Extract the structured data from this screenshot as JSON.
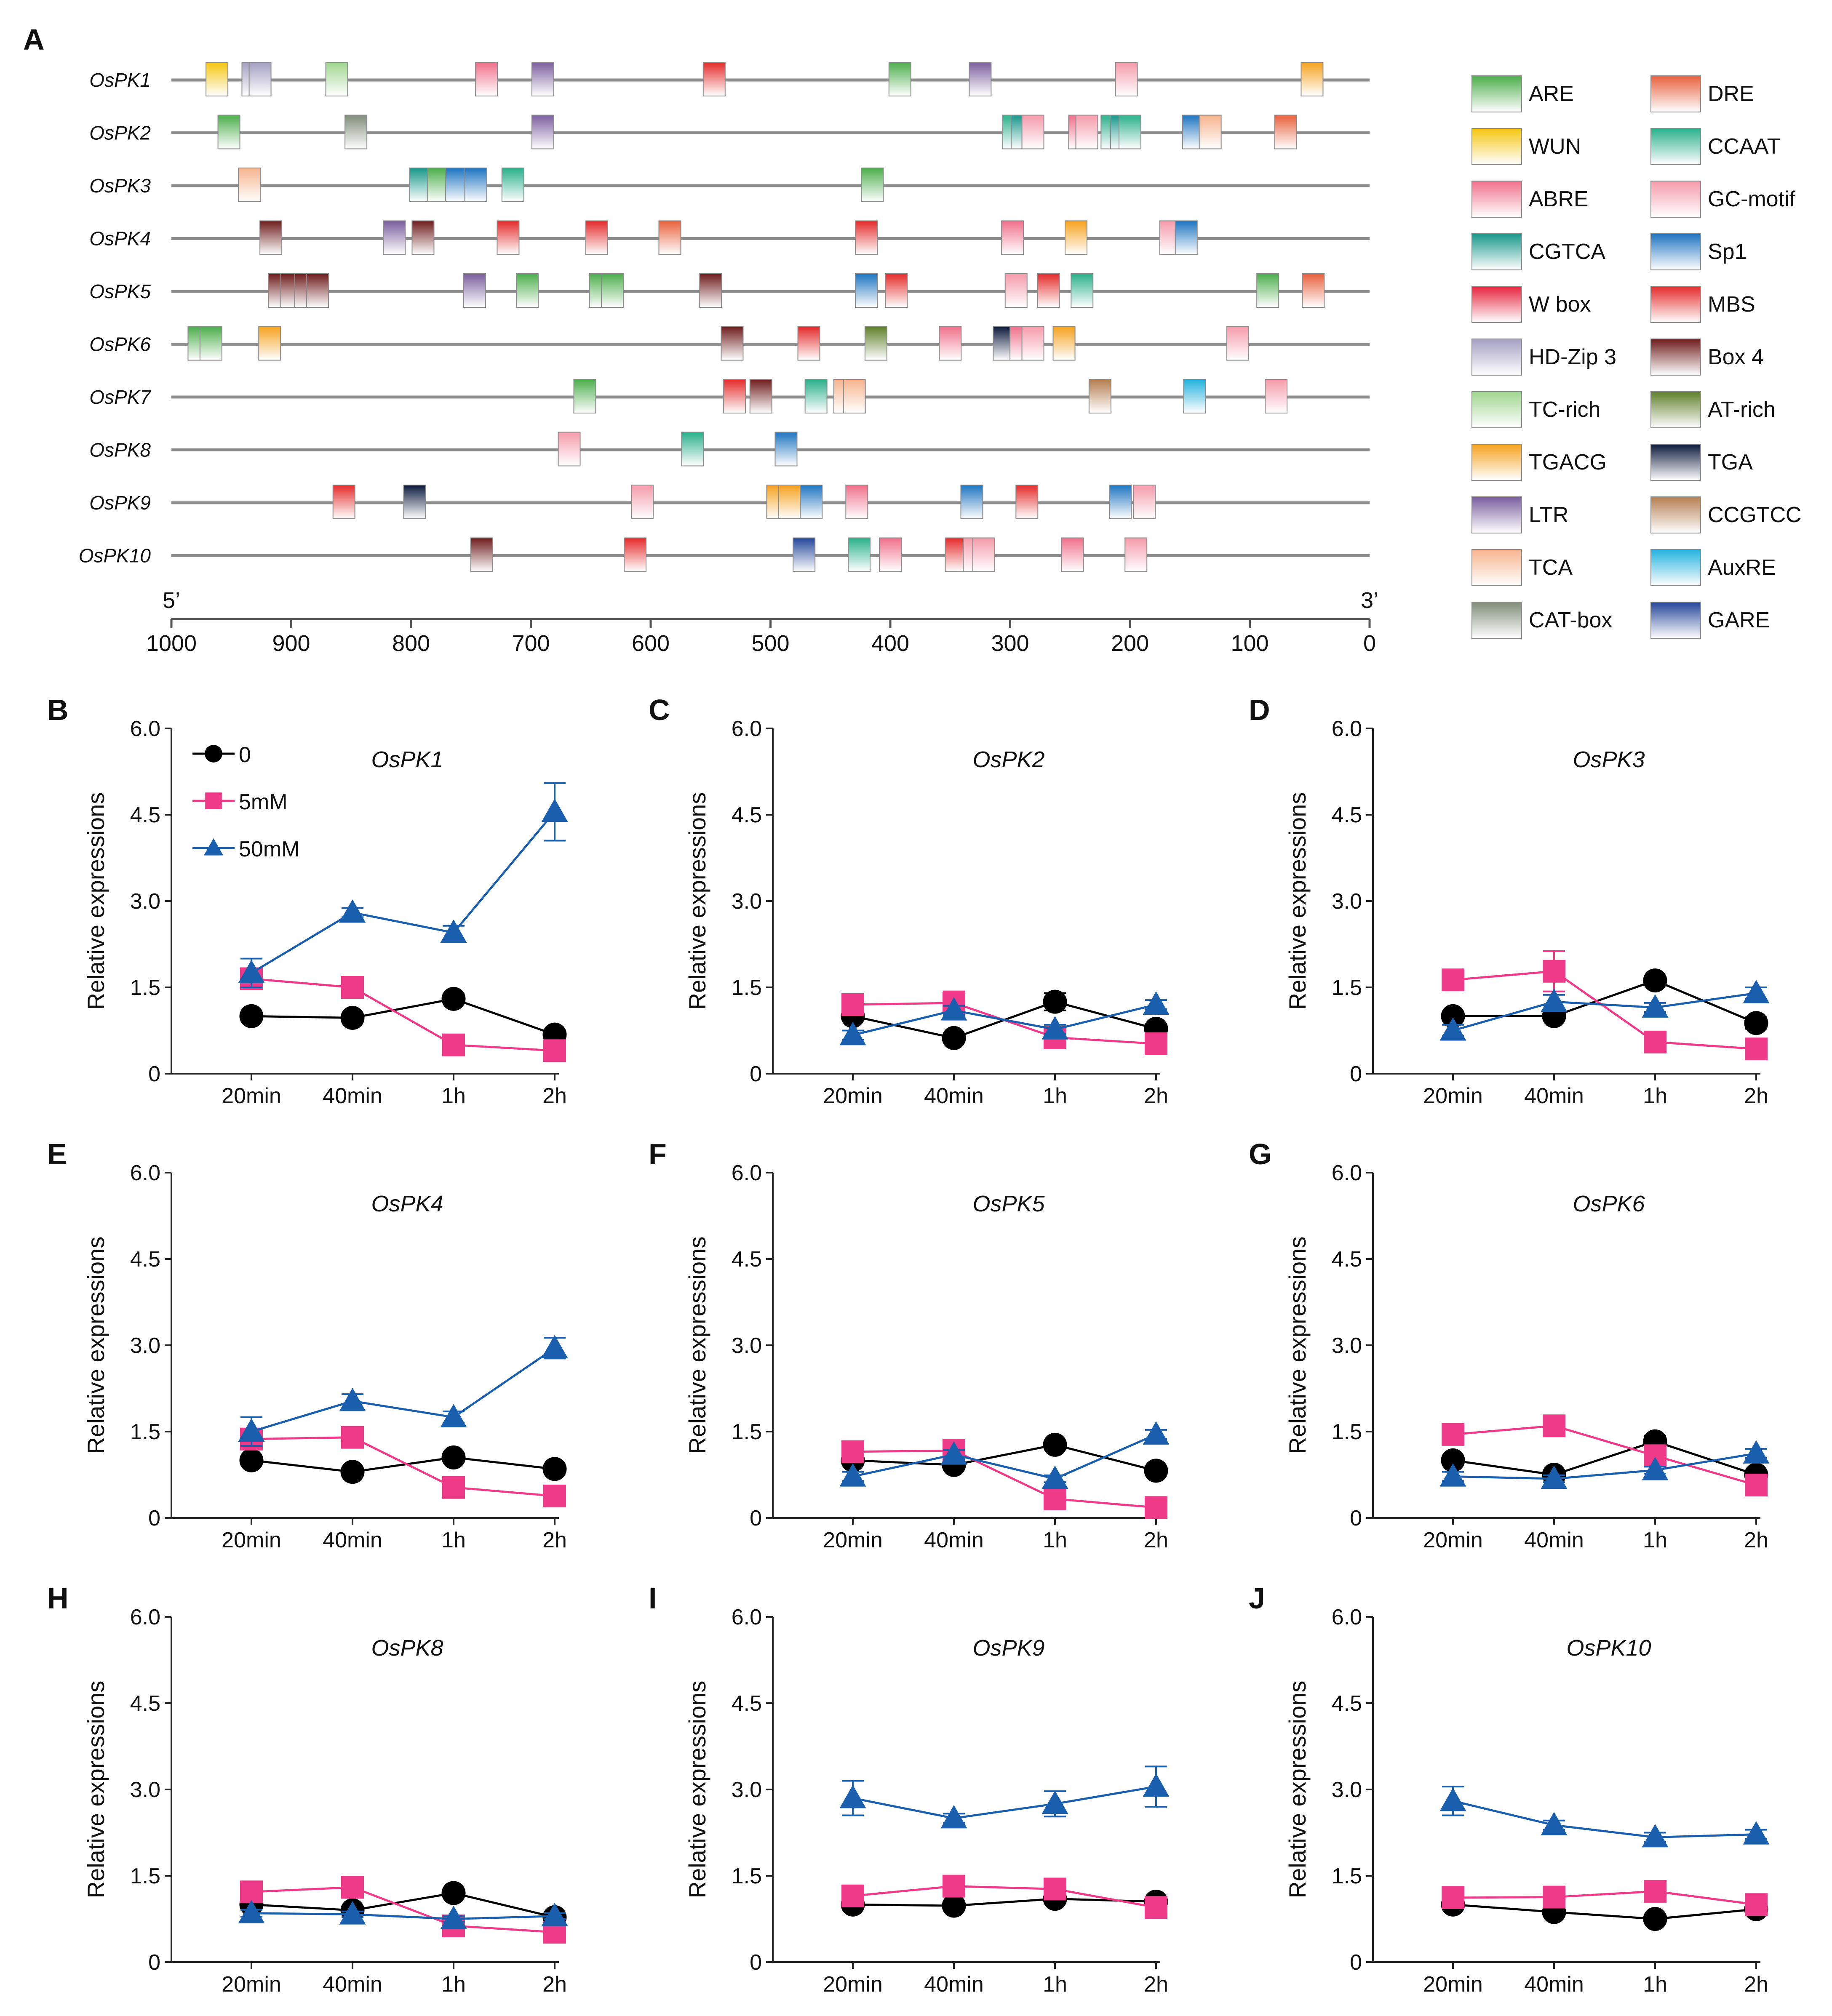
{
  "colors": {
    "ARE": "#4cae4c",
    "WUN": "#f5c60f",
    "ABRE": "#f0708a",
    "CGTCA": "#17978a",
    "W box": "#e8233e",
    "HD-Zip 3": "#a4a0c2",
    "TC-rich": "#9fd68f",
    "TGACG": "#f6a21d",
    "LTR": "#7a5e9e",
    "TCA": "#f7b48e",
    "CAT-box": "#7f8c78",
    "DRE": "#e8603c",
    "CCAAT": "#29b08a",
    "GC-motif": "#f59aaa",
    "Sp1": "#1d74c0",
    "MBS": "#e52a2a",
    "Box 4": "#6e1c1c",
    "AT-rich": "#5f7f2a",
    "TGA": "#0c1a3c",
    "CCGTCC": "#b57e50",
    "AuxRE": "#22b2de",
    "GARE": "#23469a",
    "series_0": "#000000",
    "series_5mM": "#ee3a88",
    "series_50mM": "#1a5fae"
  },
  "panel_a": {
    "letter": "A",
    "start_label": "5’",
    "end_label": "3’",
    "axis_ticks": [
      "1000",
      "900",
      "800",
      "700",
      "600",
      "500",
      "400",
      "300",
      "200",
      "100",
      "0"
    ],
    "legend": {
      "left": [
        "ARE",
        "WUN",
        "ABRE",
        "CGTCA",
        "W box",
        "HD-Zip 3",
        "TC-rich",
        "TGACG",
        "LTR",
        "TCA",
        "CAT-box"
      ],
      "right": [
        "DRE",
        "CCAAT",
        "GC-motif",
        "Sp1",
        "MBS",
        "Box 4",
        "AT-rich",
        "TGA",
        "CCGTCC",
        "AuxRE",
        "GARE"
      ]
    },
    "genes": [
      {
        "name": "OsPK1",
        "elements": [
          [
            "WUN",
            962
          ],
          [
            "HD-Zip 3",
            932
          ],
          [
            "HD-Zip 3",
            926
          ],
          [
            "TC-rich",
            862
          ],
          [
            "ABRE",
            737
          ],
          [
            "LTR",
            690
          ],
          [
            "MBS",
            547
          ],
          [
            "ARE",
            392
          ],
          [
            "LTR",
            325
          ],
          [
            "GC-motif",
            203
          ],
          [
            "TGACG",
            48
          ]
        ]
      },
      {
        "name": "OsPK2",
        "elements": [
          [
            "ARE",
            952
          ],
          [
            "CAT-box",
            846
          ],
          [
            "LTR",
            690
          ],
          [
            "CCAAT",
            297
          ],
          [
            "CGTCA",
            290
          ],
          [
            "GC-motif",
            281
          ],
          [
            "ABRE",
            242
          ],
          [
            "GC-motif",
            236
          ],
          [
            "CCAAT",
            215
          ],
          [
            "CGTCA",
            207
          ],
          [
            "CCAAT",
            200
          ],
          [
            "Sp1",
            147
          ],
          [
            "TCA",
            133
          ],
          [
            "DRE",
            70
          ]
        ]
      },
      {
        "name": "OsPK3",
        "elements": [
          [
            "TCA",
            935
          ],
          [
            "CGTCA",
            792
          ],
          [
            "ARE",
            777
          ],
          [
            "Sp1",
            762
          ],
          [
            "Sp1",
            746
          ],
          [
            "CCAAT",
            715
          ],
          [
            "ARE",
            415
          ]
        ]
      },
      {
        "name": "OsPK4",
        "elements": [
          [
            "Box 4",
            917
          ],
          [
            "LTR",
            814
          ],
          [
            "Box 4",
            790
          ],
          [
            "MBS",
            719
          ],
          [
            "MBS",
            645
          ],
          [
            "DRE",
            584
          ],
          [
            "MBS",
            420
          ],
          [
            "ABRE",
            298
          ],
          [
            "TGACG",
            245
          ],
          [
            "GC-motif",
            166
          ],
          [
            "Sp1",
            153
          ]
        ]
      },
      {
        "name": "OsPK5",
        "elements": [
          [
            "Box 4",
            910
          ],
          [
            "Box 4",
            900
          ],
          [
            "Box 4",
            888
          ],
          [
            "Box 4",
            878
          ],
          [
            "LTR",
            747
          ],
          [
            "ARE",
            703
          ],
          [
            "ARE",
            642
          ],
          [
            "ARE",
            632
          ],
          [
            "Box 4",
            550
          ],
          [
            "Sp1",
            420
          ],
          [
            "MBS",
            395
          ],
          [
            "GC-motif",
            295
          ],
          [
            "MBS",
            268
          ],
          [
            "CCAAT",
            240
          ],
          [
            "ARE",
            85
          ],
          [
            "DRE",
            47
          ]
        ]
      },
      {
        "name": "OsPK6",
        "elements": [
          [
            "ARE",
            977
          ],
          [
            "ARE",
            967
          ],
          [
            "TGACG",
            918
          ],
          [
            "Box 4",
            532
          ],
          [
            "MBS",
            468
          ],
          [
            "AT-rich",
            412
          ],
          [
            "ABRE",
            350
          ],
          [
            "TGA",
            305
          ],
          [
            "ABRE",
            291
          ],
          [
            "GC-motif",
            281
          ],
          [
            "TGACG",
            255
          ],
          [
            "GC-motif",
            110
          ]
        ]
      },
      {
        "name": "OsPK7",
        "elements": [
          [
            "ARE",
            655
          ],
          [
            "MBS",
            530
          ],
          [
            "Box 4",
            508
          ],
          [
            "CCAAT",
            462
          ],
          [
            "TCA",
            438
          ],
          [
            "TCA",
            430
          ],
          [
            "CCGTCC",
            225
          ],
          [
            "AuxRE",
            146
          ],
          [
            "GC-motif",
            78
          ]
        ]
      },
      {
        "name": "OsPK8",
        "elements": [
          [
            "GC-motif",
            668
          ],
          [
            "CCAAT",
            565
          ],
          [
            "Sp1",
            487
          ]
        ]
      },
      {
        "name": "OsPK9",
        "elements": [
          [
            "MBS",
            856
          ],
          [
            "TGA",
            797
          ],
          [
            "GC-motif",
            607
          ],
          [
            "TGACG",
            494
          ],
          [
            "TGACG",
            484
          ],
          [
            "Sp1",
            466
          ],
          [
            "ABRE",
            428
          ],
          [
            "Sp1",
            332
          ],
          [
            "MBS",
            286
          ],
          [
            "Sp1",
            208
          ],
          [
            "GC-motif",
            188
          ]
        ]
      },
      {
        "name": "OsPK10",
        "elements": [
          [
            "Box 4",
            741
          ],
          [
            "MBS",
            613
          ],
          [
            "GARE",
            472
          ],
          [
            "CCAAT",
            426
          ],
          [
            "ABRE",
            400
          ],
          [
            "MBS",
            345
          ],
          [
            "GC-motif",
            330
          ],
          [
            "GC-motif",
            322
          ],
          [
            "ABRE",
            248
          ],
          [
            "GC-motif",
            195
          ]
        ]
      }
    ]
  },
  "line_legend": {
    "s0": "0",
    "s5": "5mM",
    "s50": "50mM"
  },
  "chart_data": [
    {
      "type": "line",
      "panel": "B",
      "title": "OsPK1",
      "ylabel": "Relative expressions",
      "ylim": [
        0,
        6
      ],
      "yticks": [
        "0",
        "1.5",
        "3.0",
        "4.5",
        "6.0"
      ],
      "categories": [
        "20min",
        "40min",
        "1h",
        "2h"
      ],
      "series": [
        {
          "name": "0",
          "values": [
            1.0,
            0.97,
            1.3,
            0.68
          ],
          "errors": [
            0.05,
            0.05,
            0.08,
            0.05
          ]
        },
        {
          "name": "5mM",
          "values": [
            1.65,
            1.5,
            0.5,
            0.4
          ],
          "errors": [
            0.1,
            0.08,
            0.05,
            0.05
          ]
        },
        {
          "name": "50mM",
          "values": [
            1.75,
            2.8,
            2.45,
            4.55
          ],
          "errors": [
            0.25,
            0.08,
            0.12,
            0.5
          ]
        }
      ]
    },
    {
      "type": "line",
      "panel": "C",
      "title": "OsPK2",
      "ylabel": "Relative expressions",
      "ylim": [
        0,
        6
      ],
      "yticks": [
        "0",
        "1.5",
        "3.0",
        "4.5",
        "6.0"
      ],
      "categories": [
        "20min",
        "40min",
        "1h",
        "2h"
      ],
      "series": [
        {
          "name": "0",
          "values": [
            1.0,
            0.62,
            1.25,
            0.78
          ],
          "errors": [
            0.05,
            0.05,
            0.15,
            0.08
          ]
        },
        {
          "name": "5mM",
          "values": [
            1.2,
            1.23,
            0.63,
            0.52
          ],
          "errors": [
            0.08,
            0.2,
            0.06,
            0.05
          ]
        },
        {
          "name": "50mM",
          "values": [
            0.67,
            1.1,
            0.77,
            1.2
          ],
          "errors": [
            0.08,
            0.08,
            0.08,
            0.08
          ]
        }
      ]
    },
    {
      "type": "line",
      "panel": "D",
      "title": "OsPK3",
      "ylabel": "Relative expressions",
      "ylim": [
        0,
        6
      ],
      "yticks": [
        "0",
        "1.5",
        "3.0",
        "4.5",
        "6.0"
      ],
      "categories": [
        "20min",
        "40min",
        "1h",
        "2h"
      ],
      "series": [
        {
          "name": "0",
          "values": [
            1.0,
            1.0,
            1.62,
            0.88
          ],
          "errors": [
            0.05,
            0.05,
            0.06,
            0.1
          ]
        },
        {
          "name": "5mM",
          "values": [
            1.63,
            1.78,
            0.55,
            0.43
          ],
          "errors": [
            0.1,
            0.35,
            0.05,
            0.05
          ]
        },
        {
          "name": "50mM",
          "values": [
            0.75,
            1.25,
            1.15,
            1.4
          ],
          "errors": [
            0.1,
            0.12,
            0.08,
            0.1
          ]
        }
      ]
    },
    {
      "type": "line",
      "panel": "E",
      "title": "OsPK4",
      "ylabel": "Relative expressions",
      "ylim": [
        0,
        6
      ],
      "yticks": [
        "0",
        "1.5",
        "3.0",
        "4.5",
        "6.0"
      ],
      "categories": [
        "20min",
        "40min",
        "1h",
        "2h"
      ],
      "series": [
        {
          "name": "0",
          "values": [
            1.0,
            0.8,
            1.05,
            0.85
          ],
          "errors": [
            0.05,
            0.05,
            0.06,
            0.08
          ]
        },
        {
          "name": "5mM",
          "values": [
            1.37,
            1.4,
            0.53,
            0.38
          ],
          "errors": [
            0.1,
            0.1,
            0.05,
            0.05
          ]
        },
        {
          "name": "50mM",
          "values": [
            1.5,
            2.03,
            1.75,
            2.95
          ],
          "errors": [
            0.25,
            0.12,
            0.1,
            0.18
          ]
        }
      ]
    },
    {
      "type": "line",
      "panel": "F",
      "title": "OsPK5",
      "ylabel": "Relative expressions",
      "ylim": [
        0,
        6
      ],
      "yticks": [
        "0",
        "1.5",
        "3.0",
        "4.5",
        "6.0"
      ],
      "categories": [
        "20min",
        "40min",
        "1h",
        "2h"
      ],
      "series": [
        {
          "name": "0",
          "values": [
            1.0,
            0.92,
            1.27,
            0.82
          ],
          "errors": [
            0.05,
            0.05,
            0.06,
            0.06
          ]
        },
        {
          "name": "5mM",
          "values": [
            1.15,
            1.17,
            0.33,
            0.18
          ],
          "errors": [
            0.08,
            0.08,
            0.05,
            0.05
          ]
        },
        {
          "name": "50mM",
          "values": [
            0.72,
            1.1,
            0.68,
            1.45
          ],
          "errors": [
            0.08,
            0.08,
            0.06,
            0.08
          ]
        }
      ]
    },
    {
      "type": "line",
      "panel": "G",
      "title": "OsPK6",
      "ylabel": "Relative expressions",
      "ylim": [
        0,
        6
      ],
      "yticks": [
        "0",
        "1.5",
        "3.0",
        "4.5",
        "6.0"
      ],
      "categories": [
        "20min",
        "40min",
        "1h",
        "2h"
      ],
      "series": [
        {
          "name": "0",
          "values": [
            1.0,
            0.75,
            1.33,
            0.75
          ],
          "errors": [
            0.05,
            0.05,
            0.1,
            0.05
          ]
        },
        {
          "name": "5mM",
          "values": [
            1.45,
            1.6,
            1.08,
            0.57
          ],
          "errors": [
            0.08,
            0.08,
            0.08,
            0.06
          ]
        },
        {
          "name": "50mM",
          "values": [
            0.72,
            0.68,
            0.83,
            1.12
          ],
          "errors": [
            0.08,
            0.06,
            0.06,
            0.08
          ]
        }
      ]
    },
    {
      "type": "line",
      "panel": "H",
      "title": "OsPK8",
      "ylabel": "Relative expressions",
      "ylim": [
        0,
        6
      ],
      "yticks": [
        "0",
        "1.5",
        "3.0",
        "4.5",
        "6.0"
      ],
      "categories": [
        "20min",
        "40min",
        "1h",
        "2h"
      ],
      "series": [
        {
          "name": "0",
          "values": [
            1.0,
            0.9,
            1.2,
            0.78
          ],
          "errors": [
            0.05,
            0.05,
            0.06,
            0.05
          ]
        },
        {
          "name": "5mM",
          "values": [
            1.22,
            1.3,
            0.63,
            0.52
          ],
          "errors": [
            0.08,
            0.08,
            0.06,
            0.05
          ]
        },
        {
          "name": "50mM",
          "values": [
            0.85,
            0.83,
            0.75,
            0.8
          ],
          "errors": [
            0.06,
            0.05,
            0.05,
            0.05
          ]
        }
      ]
    },
    {
      "type": "line",
      "panel": "I",
      "title": "OsPK9",
      "ylabel": "Relative expressions",
      "ylim": [
        0,
        6
      ],
      "yticks": [
        "0",
        "1.5",
        "3.0",
        "4.5",
        "6.0"
      ],
      "categories": [
        "20min",
        "40min",
        "1h",
        "2h"
      ],
      "series": [
        {
          "name": "0",
          "values": [
            1.0,
            0.98,
            1.1,
            1.05
          ],
          "errors": [
            0.05,
            0.05,
            0.05,
            0.05
          ]
        },
        {
          "name": "5mM",
          "values": [
            1.15,
            1.32,
            1.27,
            0.95
          ],
          "errors": [
            0.06,
            0.08,
            0.06,
            0.06
          ]
        },
        {
          "name": "50mM",
          "values": [
            2.85,
            2.5,
            2.75,
            3.05
          ],
          "errors": [
            0.3,
            0.08,
            0.22,
            0.35
          ]
        }
      ]
    },
    {
      "type": "line",
      "panel": "J",
      "title": "OsPK10",
      "ylabel": "Relative expressions",
      "ylim": [
        0,
        6
      ],
      "yticks": [
        "0",
        "1.5",
        "3.0",
        "4.5",
        "6.0"
      ],
      "categories": [
        "20min",
        "40min",
        "1h",
        "2h"
      ],
      "series": [
        {
          "name": "0",
          "values": [
            1.0,
            0.87,
            0.75,
            0.92
          ],
          "errors": [
            0.05,
            0.05,
            0.05,
            0.05
          ]
        },
        {
          "name": "5mM",
          "values": [
            1.12,
            1.13,
            1.23,
            1.0
          ],
          "errors": [
            0.06,
            0.06,
            0.06,
            0.06
          ]
        },
        {
          "name": "50mM",
          "values": [
            2.8,
            2.38,
            2.17,
            2.22
          ],
          "errors": [
            0.25,
            0.08,
            0.08,
            0.08
          ]
        }
      ]
    }
  ]
}
